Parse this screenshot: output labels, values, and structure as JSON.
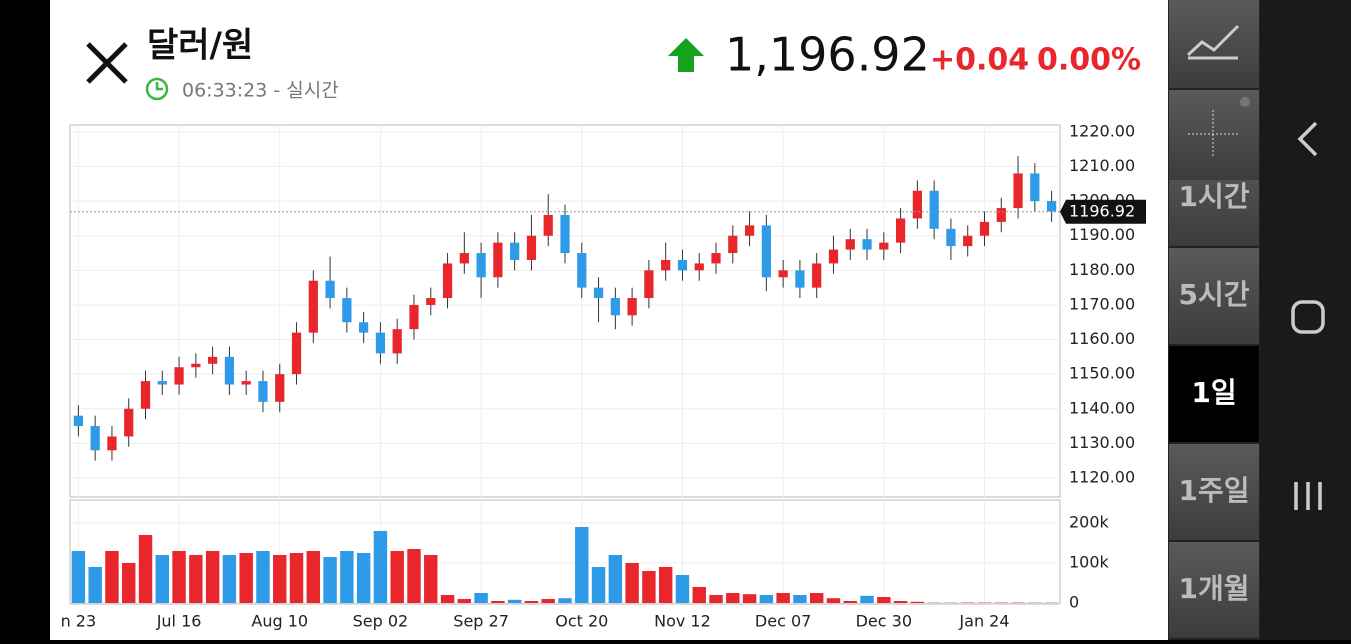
{
  "header": {
    "title": "달러/원",
    "time": "06:33:23 - 실시간",
    "price": "1,196.92",
    "change": "+0.04",
    "change_pct": "0.00%"
  },
  "sidebar": {
    "intervals": [
      "1시간",
      "5시간",
      "1일",
      "1주일",
      "1개월"
    ]
  },
  "chart_data": {
    "type": "candlestick",
    "categories": [
      "n 23",
      null,
      null,
      null,
      null,
      null,
      "Jul 16",
      null,
      null,
      null,
      null,
      null,
      "Aug 10",
      null,
      null,
      null,
      null,
      null,
      "Sep 02",
      null,
      null,
      null,
      null,
      null,
      "Sep 27",
      null,
      null,
      null,
      null,
      null,
      "Oct 20",
      null,
      null,
      null,
      null,
      null,
      "Nov 12",
      null,
      null,
      null,
      null,
      null,
      "Dec 07",
      null,
      null,
      null,
      null,
      null,
      "Dec 30",
      null,
      null,
      null,
      null,
      null,
      "Jan 24",
      null,
      null,
      null,
      null
    ],
    "open": [
      1138,
      1135,
      1128,
      1132,
      1140,
      1148,
      1147,
      1152,
      1153,
      1155,
      1147,
      1148,
      1142,
      1150,
      1162,
      1177,
      1172,
      1165,
      1162,
      1156,
      1163,
      1170,
      1172,
      1182,
      1185,
      1178,
      1188,
      1183,
      1190,
      1196,
      1185,
      1175,
      1172,
      1167,
      1172,
      1180,
      1183,
      1180,
      1182,
      1185,
      1190,
      1193,
      1178,
      1180,
      1175,
      1182,
      1186,
      1189,
      1186,
      1188,
      1195,
      1203,
      1192,
      1187,
      1190,
      1194,
      1198,
      1208,
      1200
    ],
    "high": [
      1141,
      1138,
      1135,
      1143,
      1151,
      1151,
      1155,
      1156,
      1158,
      1158,
      1151,
      1151,
      1153,
      1165,
      1180,
      1184,
      1175,
      1168,
      1165,
      1166,
      1173,
      1175,
      1185,
      1191,
      1188,
      1191,
      1191,
      1196,
      1202,
      1199,
      1188,
      1178,
      1175,
      1175,
      1183,
      1188,
      1186,
      1185,
      1188,
      1193,
      1197,
      1196,
      1183,
      1183,
      1185,
      1190,
      1192,
      1192,
      1191,
      1198,
      1206,
      1206,
      1195,
      1193,
      1197,
      1201,
      1213,
      1211,
      1203
    ],
    "low": [
      1132,
      1125,
      1125,
      1129,
      1137,
      1144,
      1144,
      1149,
      1150,
      1144,
      1144,
      1139,
      1139,
      1147,
      1159,
      1169,
      1162,
      1159,
      1153,
      1153,
      1160,
      1167,
      1169,
      1179,
      1172,
      1175,
      1180,
      1180,
      1187,
      1182,
      1172,
      1165,
      1163,
      1164,
      1169,
      1177,
      1177,
      1177,
      1179,
      1182,
      1187,
      1174,
      1175,
      1172,
      1172,
      1179,
      1183,
      1183,
      1183,
      1185,
      1192,
      1189,
      1183,
      1184,
      1187,
      1191,
      1195,
      1197,
      1194
    ],
    "close": [
      1135,
      1128,
      1132,
      1140,
      1148,
      1147,
      1152,
      1153,
      1155,
      1147,
      1148,
      1142,
      1150,
      1162,
      1177,
      1172,
      1165,
      1162,
      1156,
      1163,
      1170,
      1172,
      1182,
      1185,
      1178,
      1188,
      1183,
      1190,
      1196,
      1185,
      1175,
      1172,
      1167,
      1172,
      1180,
      1183,
      1180,
      1182,
      1185,
      1190,
      1193,
      1178,
      1180,
      1175,
      1182,
      1186,
      1189,
      1186,
      1188,
      1195,
      1203,
      1192,
      1187,
      1190,
      1194,
      1198,
      1208,
      1200,
      1197
    ],
    "volume": [
      130000,
      90000,
      130000,
      100000,
      170000,
      120000,
      130000,
      120000,
      130000,
      120000,
      125000,
      130000,
      120000,
      125000,
      130000,
      115000,
      130000,
      125000,
      180000,
      130000,
      135000,
      120000,
      20000,
      10000,
      25000,
      5000,
      8000,
      5000,
      10000,
      12000,
      190000,
      90000,
      120000,
      100000,
      80000,
      90000,
      70000,
      40000,
      20000,
      25000,
      22000,
      20000,
      25000,
      20000,
      25000,
      12000,
      5000,
      18000,
      15000,
      5000,
      3000,
      1000,
      1000,
      1000,
      1000,
      1000,
      1000,
      1000,
      1000
    ],
    "up_color": "#e8262b",
    "down_color": "#2e9be8",
    "ylim": [
      1114.5,
      1222
    ],
    "yticks": [
      {
        "value": 1220,
        "label": "1220.00"
      },
      {
        "value": 1210,
        "label": "1210.00"
      },
      {
        "value": 1200,
        "label": "1200.00"
      },
      {
        "value": 1190,
        "label": "1190.00"
      },
      {
        "value": 1180,
        "label": "1180.00"
      },
      {
        "value": 1170,
        "label": "1170.00"
      },
      {
        "value": 1160,
        "label": "1160.00"
      },
      {
        "value": 1150,
        "label": "1150.00"
      },
      {
        "value": 1140,
        "label": "1140.00"
      },
      {
        "value": 1130,
        "label": "1130.00"
      },
      {
        "value": 1120,
        "label": "1120.00"
      }
    ],
    "volume_lim": [
      0,
      257500
    ],
    "volume_ticks": [
      {
        "value": 200000,
        "label": "200k"
      },
      {
        "value": 100000,
        "label": "100k"
      },
      0
    ],
    "last_price": {
      "value": 1196.92,
      "label": "1196.92"
    },
    "grid": true
  }
}
